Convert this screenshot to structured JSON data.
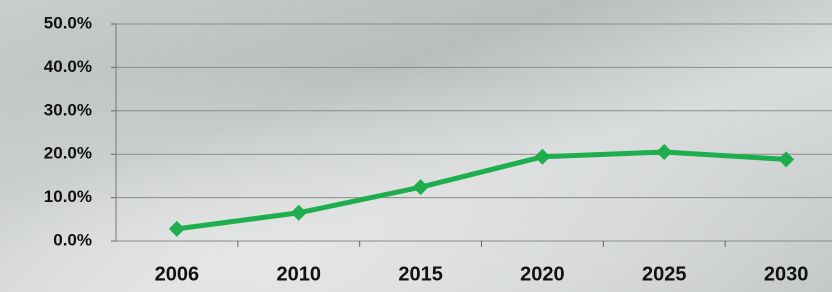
{
  "chart_data": {
    "type": "line",
    "categories": [
      "2006",
      "2010",
      "2015",
      "2020",
      "2025",
      "2030"
    ],
    "series": [
      {
        "color": "#1fae4d",
        "values": [
          2.8,
          6.5,
          12.4,
          19.4,
          20.5,
          18.8
        ]
      }
    ],
    "ylim": [
      0,
      50
    ],
    "yticks": [
      {
        "value": 0,
        "label": "0.0%"
      },
      {
        "value": 10,
        "label": "10.0%"
      },
      {
        "value": 20,
        "label": "20.0%"
      },
      {
        "value": 30,
        "label": "30.0%"
      },
      {
        "value": 40,
        "label": "40.0%"
      },
      {
        "value": 50,
        "label": "50.0%"
      }
    ],
    "grid": true
  }
}
